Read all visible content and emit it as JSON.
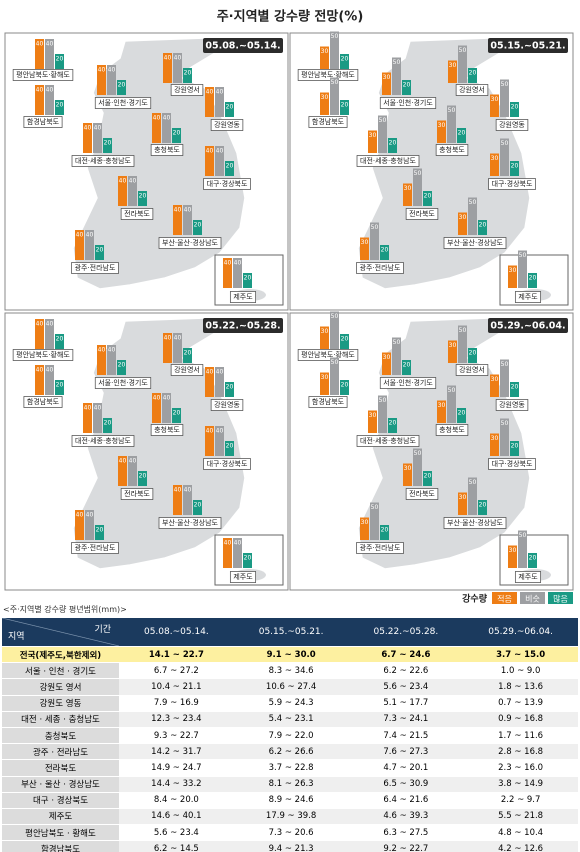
{
  "title": "주·지역별 강수량 전망(%)",
  "chart_data": [
    {
      "type": "bar",
      "title": "05.08.~05.14.",
      "categories": [
        "평안남북도·황해도",
        "함경남북도",
        "서울·인천·경기도",
        "강원영서",
        "강원영동",
        "충청북도",
        "대전·세종·충청남도",
        "대구·경상북도",
        "전라북도",
        "부산·울산·경상남도",
        "광주·전라남도",
        "제주도"
      ],
      "series": [
        {
          "color": "#ee7d14",
          "values": [
            40,
            40,
            40,
            40,
            40,
            40,
            40,
            40,
            40,
            40,
            40,
            40
          ]
        },
        {
          "color": "#9d9fa2",
          "values": [
            40,
            40,
            40,
            40,
            40,
            40,
            40,
            40,
            40,
            40,
            40,
            40
          ]
        },
        {
          "color": "#1a9a84",
          "values": [
            20,
            20,
            20,
            20,
            20,
            20,
            20,
            20,
            20,
            20,
            20,
            20
          ]
        }
      ]
    },
    {
      "type": "bar",
      "title": "05.15.~05.21.",
      "categories": [
        "평안남북도·황해도",
        "함경남북도",
        "서울·인천·경기도",
        "강원영서",
        "강원영동",
        "충청북도",
        "대전·세종·충청남도",
        "대구·경상북도",
        "전라북도",
        "부산·울산·경상남도",
        "광주·전라남도",
        "제주도"
      ],
      "series": [
        {
          "color": "#ee7d14",
          "values": [
            30,
            30,
            30,
            30,
            30,
            30,
            30,
            30,
            30,
            30,
            30,
            30
          ]
        },
        {
          "color": "#9d9fa2",
          "values": [
            50,
            50,
            50,
            50,
            50,
            50,
            50,
            50,
            50,
            50,
            50,
            50
          ]
        },
        {
          "color": "#1a9a84",
          "values": [
            20,
            20,
            20,
            20,
            20,
            20,
            20,
            20,
            20,
            20,
            20,
            20
          ]
        }
      ]
    },
    {
      "type": "bar",
      "title": "05.22.~05.28.",
      "categories": [
        "평안남북도·황해도",
        "함경남북도",
        "서울·인천·경기도",
        "강원영서",
        "강원영동",
        "충청북도",
        "대전·세종·충청남도",
        "대구·경상북도",
        "전라북도",
        "부산·울산·경상남도",
        "광주·전라남도",
        "제주도"
      ],
      "series": [
        {
          "color": "#ee7d14",
          "values": [
            40,
            40,
            40,
            40,
            40,
            40,
            40,
            40,
            40,
            40,
            40,
            40
          ]
        },
        {
          "color": "#9d9fa2",
          "values": [
            40,
            40,
            40,
            40,
            40,
            40,
            40,
            40,
            40,
            40,
            40,
            40
          ]
        },
        {
          "color": "#1a9a84",
          "values": [
            20,
            20,
            20,
            20,
            20,
            20,
            20,
            20,
            20,
            20,
            20,
            20
          ]
        }
      ]
    },
    {
      "type": "bar",
      "title": "05.29.~06.04.",
      "categories": [
        "평안남북도·황해도",
        "함경남북도",
        "서울·인천·경기도",
        "강원영서",
        "강원영동",
        "충청북도",
        "대전·세종·충청남도",
        "대구·경상북도",
        "전라북도",
        "부산·울산·경상남도",
        "광주·전라남도",
        "제주도"
      ],
      "series": [
        {
          "color": "#ee7d14",
          "values": [
            30,
            30,
            30,
            30,
            30,
            30,
            30,
            30,
            30,
            30,
            30,
            30
          ]
        },
        {
          "color": "#9d9fa2",
          "values": [
            50,
            50,
            50,
            50,
            50,
            50,
            50,
            50,
            50,
            50,
            50,
            50
          ]
        },
        {
          "color": "#1a9a84",
          "values": [
            20,
            20,
            20,
            20,
            20,
            20,
            20,
            20,
            20,
            20,
            20,
            20
          ]
        }
      ]
    }
  ],
  "legend": {
    "title": "강수량",
    "items": [
      "적음",
      "비슷",
      "많음"
    ]
  },
  "table": {
    "caption": "<주·지역별 강수량 평년범위(mm)>",
    "region": "지역",
    "period": "기간",
    "columns": [
      "05.08.~05.14.",
      "05.15.~05.21.",
      "05.22.~05.28.",
      "05.29.~06.04."
    ],
    "rows": [
      [
        "전국(제주도,북한제외)",
        "14.1 ~ 22.7",
        "9.1 ~ 30.0",
        "6.7 ~ 24.6",
        "3.7 ~ 15.0"
      ],
      [
        "서울 · 인천 · 경기도",
        "6.7 ~ 27.2",
        "8.3 ~ 34.6",
        "6.2 ~ 22.6",
        "1.0 ~ 9.0"
      ],
      [
        "강원도 영서",
        "10.4 ~ 21.1",
        "10.6 ~ 27.4",
        "5.6 ~ 23.4",
        "1.8 ~ 13.6"
      ],
      [
        "강원도 영동",
        "7.9 ~ 16.9",
        "5.9 ~ 24.3",
        "5.1 ~ 17.7",
        "0.7 ~ 13.9"
      ],
      [
        "대전 · 세종 · 충청남도",
        "12.3 ~ 23.4",
        "5.4 ~ 23.1",
        "7.3 ~ 24.1",
        "0.9 ~ 16.8"
      ],
      [
        "충청북도",
        "9.3 ~ 22.7",
        "7.9 ~ 22.0",
        "7.4 ~ 21.5",
        "1.7 ~ 11.6"
      ],
      [
        "광주 · 전라남도",
        "14.2 ~ 31.7",
        "6.2 ~ 26.6",
        "7.6 ~ 27.3",
        "2.8 ~ 16.8"
      ],
      [
        "전라북도",
        "14.9 ~ 24.7",
        "3.7 ~ 22.8",
        "4.7 ~ 20.1",
        "2.3 ~ 16.0"
      ],
      [
        "부산 · 울산 · 경상남도",
        "14.4 ~ 33.2",
        "8.1 ~ 26.3",
        "6.5 ~ 30.9",
        "3.8 ~ 14.9"
      ],
      [
        "대구 · 경상북도",
        "8.4 ~ 20.0",
        "8.9 ~ 24.6",
        "6.4 ~ 21.6",
        "2.2 ~ 9.7"
      ],
      [
        "제주도",
        "14.6 ~ 40.1",
        "17.9 ~ 39.8",
        "4.6 ~ 39.3",
        "5.5 ~ 21.8"
      ],
      [
        "평안남북도 · 황해도",
        "5.6 ~ 23.4",
        "7.3 ~ 20.6",
        "6.3 ~ 27.5",
        "4.8 ~ 10.4"
      ],
      [
        "함경남북도",
        "6.2 ~ 14.5",
        "9.4 ~ 21.3",
        "9.2 ~ 22.7",
        "4.2 ~ 12.6"
      ]
    ]
  }
}
